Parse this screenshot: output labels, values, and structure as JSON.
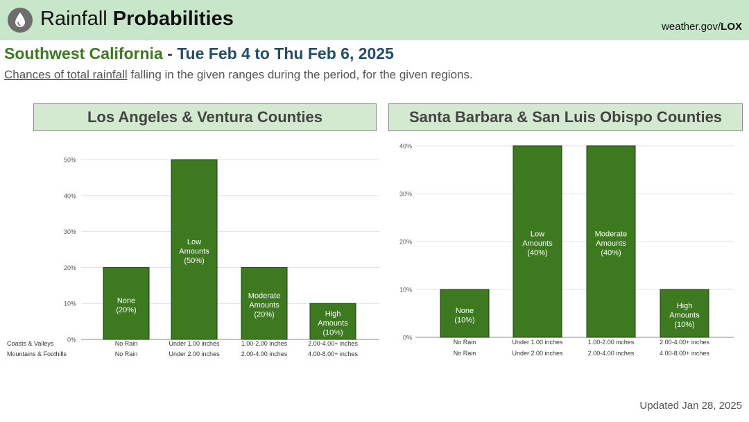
{
  "header": {
    "icon": "raindrop-icon",
    "title_regular": "Rainfall",
    "title_bold": "Probabilities",
    "site_prefix": "weather.gov/",
    "site_bold": "LOX",
    "background": "#c8e6c9"
  },
  "subtitle": {
    "region": "Southwest California",
    "separator": " - ",
    "dates": "Tue Feb 4 to Thu Feb 6, 2025"
  },
  "description": {
    "underlined": "Chances of total rainfall",
    "rest": " falling in the given ranges during the period, for the given regions."
  },
  "panels": [
    {
      "title": "Los Angeles & Ventura Counties"
    },
    {
      "title": "Santa Barbara & San Luis Obispo Counties"
    }
  ],
  "footer": {
    "updated": "Updated Jan 28, 2025"
  },
  "colors": {
    "bar": "#3d7a1f",
    "bar_border": "#1c3d0e",
    "grid": "#e0e0e0",
    "axis": "#888888"
  },
  "chart_data": [
    {
      "type": "bar",
      "title": "Los Angeles & Ventura Counties",
      "row_labels": [
        "Coasts & Valleys",
        "Mountains & Foothills"
      ],
      "categories": [
        [
          "No Rain",
          "No Rain"
        ],
        [
          "Under 1.00 inches",
          "Under 2.00 inches"
        ],
        [
          "1.00-2.00 inches",
          "2.00-4.00 inches"
        ],
        [
          "2.00-4.00+ inches",
          "4.00-8.00+ inches"
        ]
      ],
      "values": [
        20,
        50,
        20,
        10
      ],
      "bar_labels": [
        [
          "None",
          "(20%)"
        ],
        [
          "Low",
          "Amounts",
          "(50%)"
        ],
        [
          "Moderate",
          "Amounts",
          "(20%)"
        ],
        [
          "High",
          "Amounts",
          "(10%)"
        ]
      ],
      "yticks": [
        0,
        10,
        20,
        30,
        40,
        50
      ],
      "ytick_labels": [
        "0%",
        "10%",
        "20%",
        "30%",
        "40%",
        "50%"
      ],
      "ylim": [
        0,
        50
      ],
      "grid": true
    },
    {
      "type": "bar",
      "title": "Santa Barbara & San Luis Obispo Counties",
      "categories": [
        [
          "No Rain",
          "No Rain"
        ],
        [
          "Under 1.00 inches",
          "Under 2.00 inches"
        ],
        [
          "1.00-2.00 inches",
          "2.00-4.00 inches"
        ],
        [
          "2.00-4.00+ inches",
          "4.00-8.00+ inches"
        ]
      ],
      "values": [
        10,
        40,
        40,
        10
      ],
      "bar_labels": [
        [
          "None",
          "(10%)"
        ],
        [
          "Low",
          "Amounts",
          "(40%)"
        ],
        [
          "Moderate",
          "Amounts",
          "(40%)"
        ],
        [
          "High",
          "Amounts",
          "(10%)"
        ]
      ],
      "yticks": [
        0,
        10,
        20,
        30,
        40
      ],
      "ytick_labels": [
        "0%",
        "10%",
        "20%",
        "30%",
        "40%"
      ],
      "ylim": [
        0,
        40
      ],
      "grid": true
    }
  ]
}
